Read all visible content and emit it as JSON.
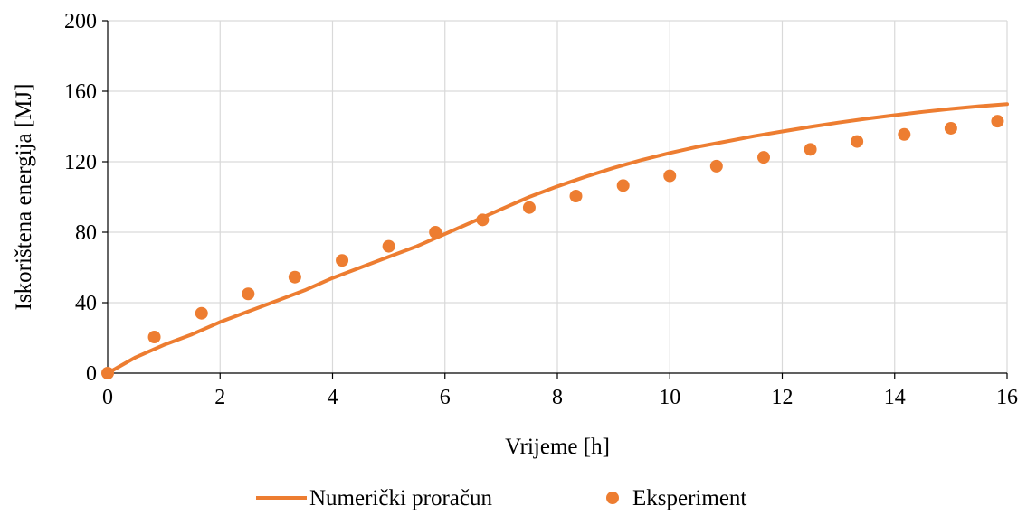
{
  "chart_data": {
    "type": "line",
    "title": "",
    "xlabel": "Vrijeme [h]",
    "ylabel": "Iskorištena energija [MJ]",
    "xlim": [
      0,
      16
    ],
    "ylim": [
      0,
      200
    ],
    "xticks": [
      0,
      2,
      4,
      6,
      8,
      10,
      12,
      14,
      16
    ],
    "yticks": [
      0,
      40,
      80,
      120,
      160,
      200
    ],
    "grid": true,
    "legend_position": "bottom",
    "series": [
      {
        "name": "Numerički proračun",
        "kind": "line",
        "color": "#ed7d31",
        "x": [
          0,
          0.5,
          1,
          1.5,
          2,
          2.5,
          3,
          3.5,
          4,
          4.5,
          5,
          5.5,
          6,
          6.5,
          7,
          7.5,
          8,
          8.5,
          9,
          9.5,
          10,
          10.5,
          11,
          11.5,
          12,
          12.5,
          13,
          13.5,
          14,
          14.5,
          15,
          15.5,
          16
        ],
        "y": [
          0,
          9,
          16,
          22,
          29,
          35,
          41,
          47,
          54,
          60,
          66,
          72,
          79,
          86,
          93,
          100,
          106,
          111.5,
          116.5,
          121,
          125,
          128.5,
          131.5,
          134.5,
          137.2,
          139.8,
          142.2,
          144.4,
          146.4,
          148.3,
          150,
          151.5,
          152.7
        ]
      },
      {
        "name": "Eksperiment",
        "kind": "scatter",
        "color": "#ed7d31",
        "x": [
          0,
          0.83,
          1.67,
          2.5,
          3.33,
          4.17,
          5.0,
          5.83,
          6.67,
          7.5,
          8.33,
          9.17,
          10.0,
          10.83,
          11.67,
          12.5,
          13.33,
          14.17,
          15.0,
          15.83
        ],
        "y": [
          0,
          20.5,
          34,
          45,
          54.5,
          64,
          72,
          80,
          87,
          94,
          100.5,
          106.5,
          112,
          117.5,
          122.5,
          127,
          131.5,
          135.5,
          139,
          143
        ]
      }
    ]
  }
}
